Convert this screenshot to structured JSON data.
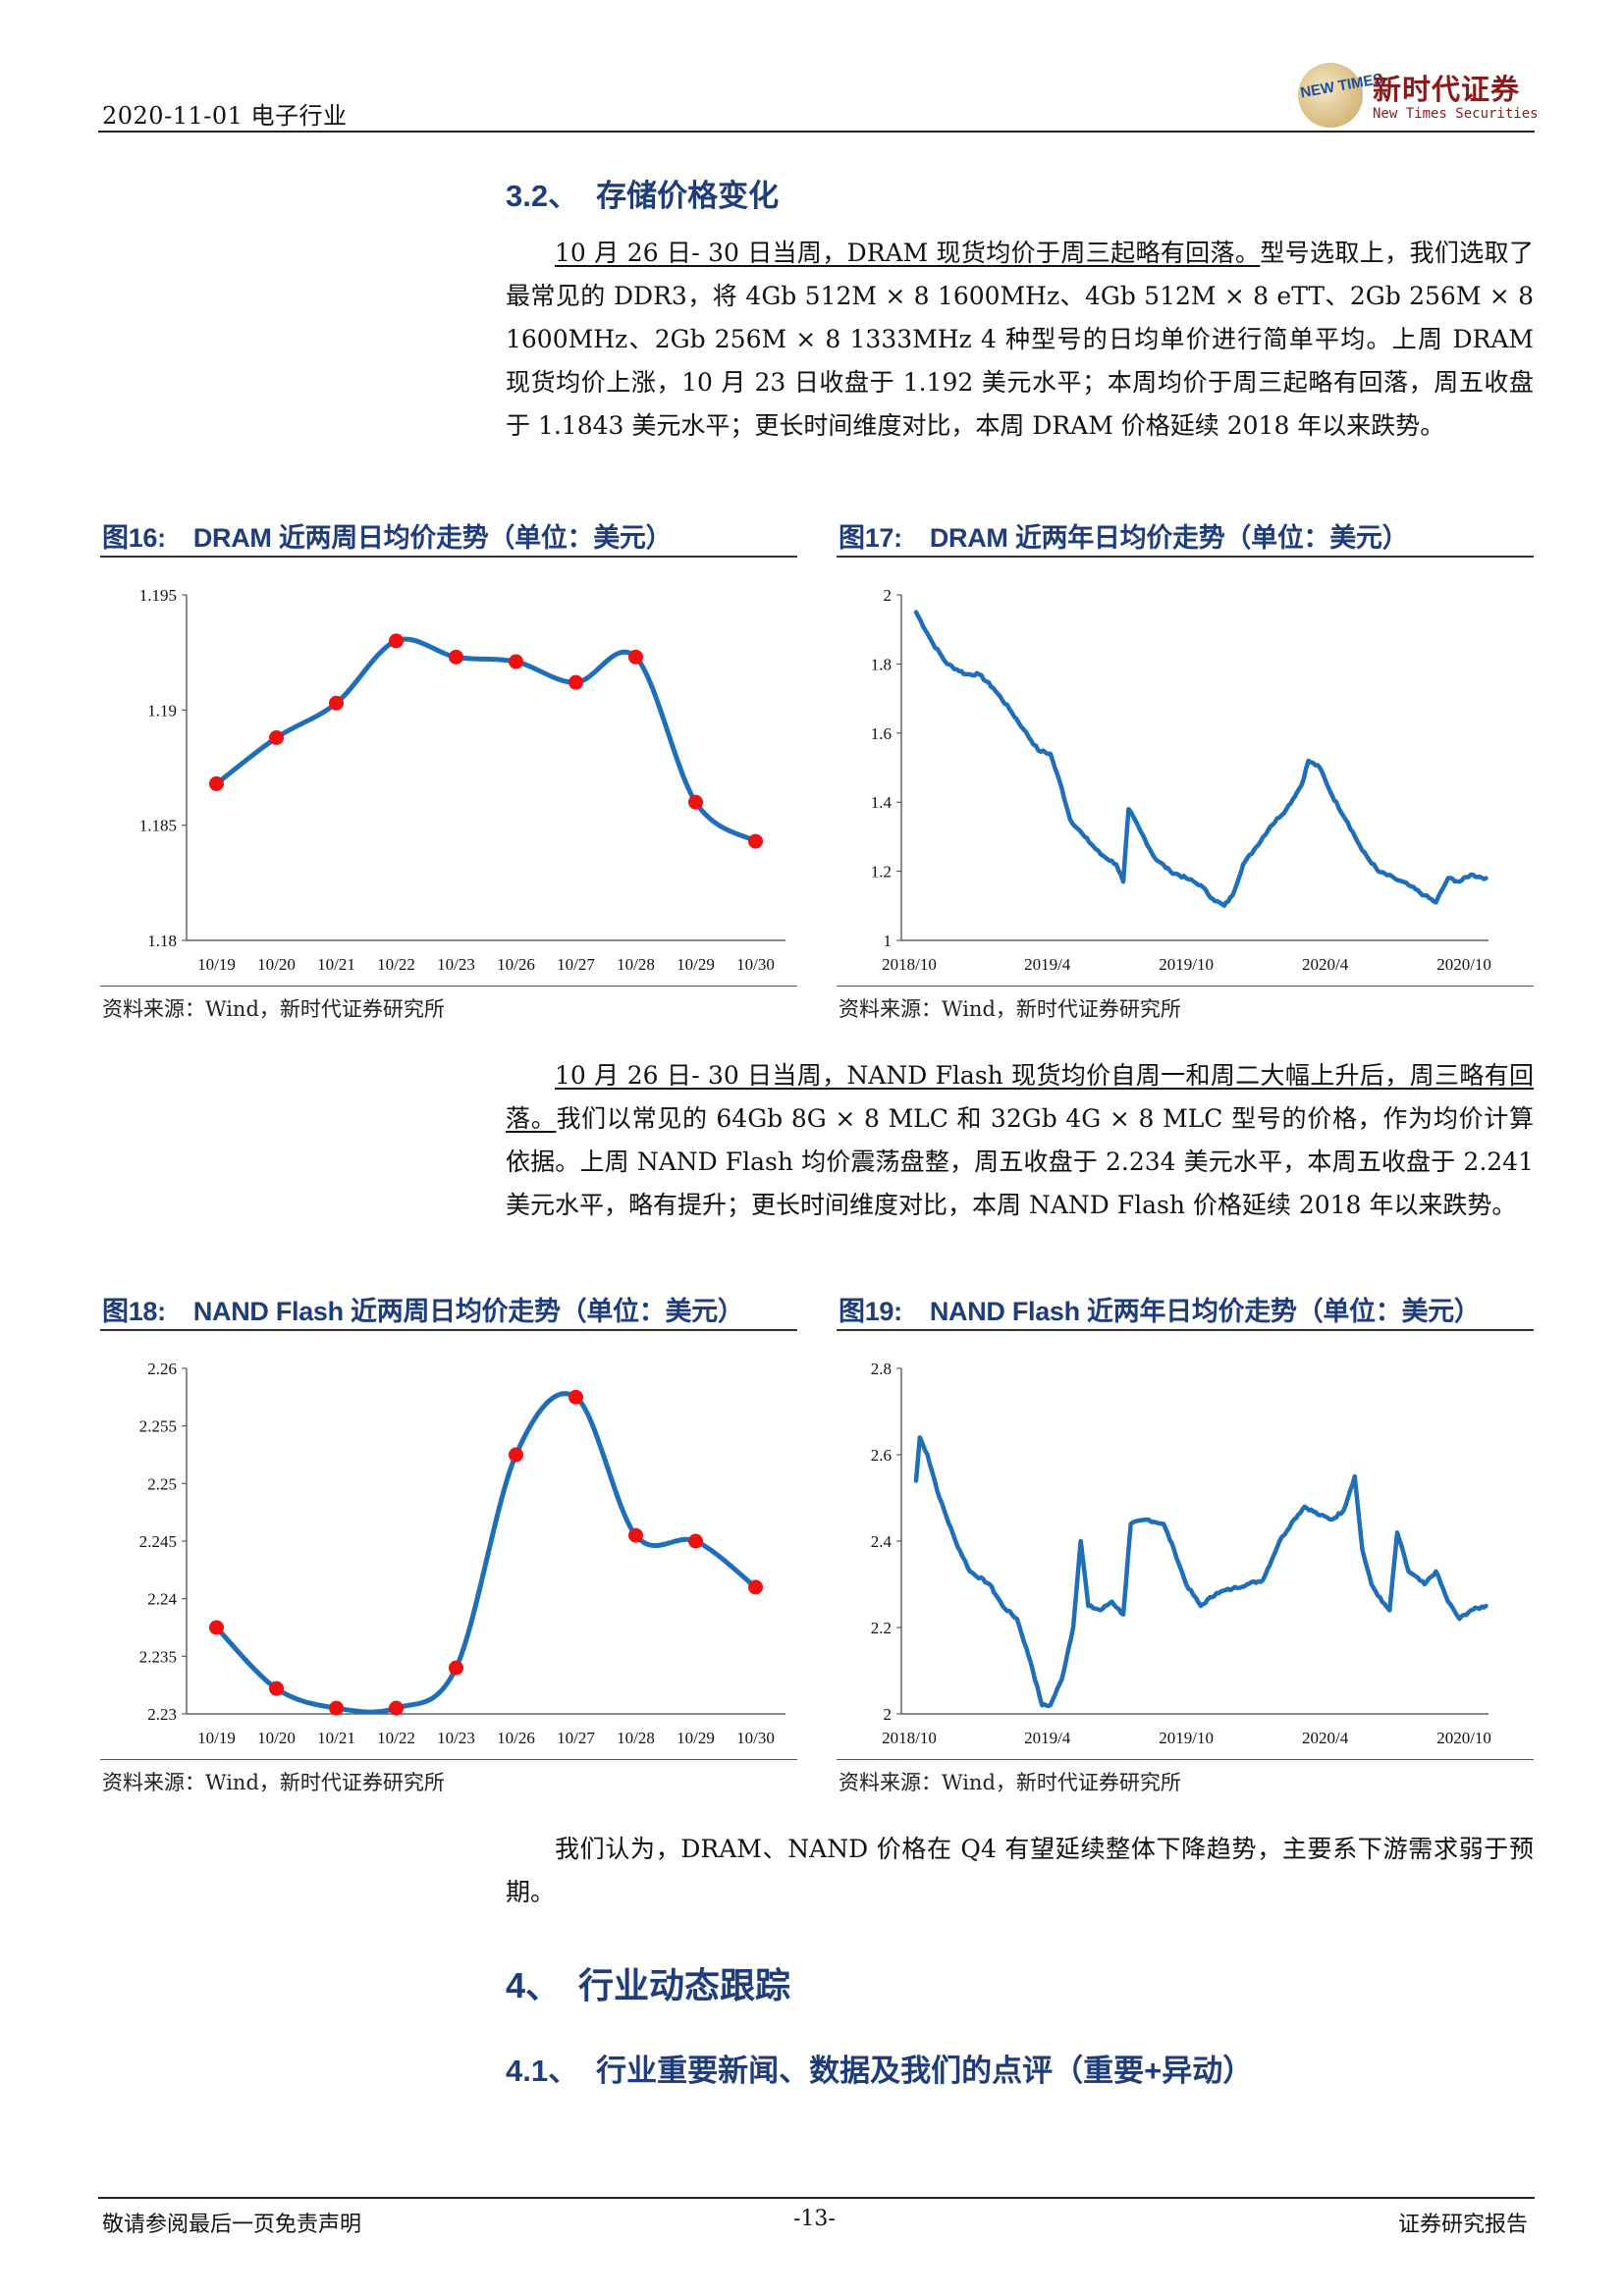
{
  "header": {
    "date_industry": "2020-11-01  电子行业",
    "logo_cn": "新时代证券",
    "logo_en": "New Times Securities",
    "logo_mark": "NEW TIMES"
  },
  "section_3_2": {
    "number": "3.2、",
    "title": "存储价格变化",
    "para1_underlined": "10 月 26 日- 30 日当周，DRAM 现货均价于周三起略有回落。",
    "para1_rest": "型号选取上，我们选取了最常见的 DDR3，将 4Gb 512M × 8 1600MHz、4Gb 512M × 8 eTT、2Gb 256M × 8 1600MHz、2Gb 256M × 8 1333MHz 4 种型号的日均单价进行简单平均。上周 DRAM 现货均价上涨，10 月 23 日收盘于 1.192 美元水平；本周均价于周三起略有回落，周五收盘于 1.1843 美元水平；更长时间维度对比，本周 DRAM 价格延续 2018 年以来跌势。",
    "para2_underlined": "10 月 26 日- 30 日当周，NAND Flash 现货均价自周一和周二大幅上升后，周三略有回落。",
    "para2_rest": "我们以常见的 64Gb 8G × 8 MLC 和 32Gb 4G × 8 MLC 型号的价格，作为均价计算依据。上周 NAND Flash 均价震荡盘整，周五收盘于 2.234 美元水平，本周五收盘于 2.241 美元水平，略有提升；更长时间维度对比，本周 NAND Flash 价格延续 2018 年以来跌势。",
    "para3": "我们认为，DRAM、NAND 价格在 Q4 有望延续整体下降趋势，主要系下游需求弱于预期。"
  },
  "figures": {
    "f16": {
      "num": "图16:",
      "title": "DRAM 近两周日均价走势（单位：美元）",
      "source": "资料来源：Wind，新时代证券研究所"
    },
    "f17": {
      "num": "图17:",
      "title": "DRAM 近两年日均价走势（单位：美元）",
      "source": "资料来源：Wind，新时代证券研究所"
    },
    "f18": {
      "num": "图18:",
      "title": "NAND Flash 近两周日均价走势（单位：美元）",
      "source": "资料来源：Wind，新时代证券研究所"
    },
    "f19": {
      "num": "图19:",
      "title": "NAND Flash 近两年日均价走势（单位：美元）",
      "source": "资料来源：Wind，新时代证券研究所"
    }
  },
  "section_4": {
    "number": "4、",
    "title": "行业动态跟踪"
  },
  "section_4_1": {
    "number": "4.1、",
    "title": "行业重要新闻、数据及我们的点评（重要+异动）"
  },
  "footer": {
    "left": "敬请参阅最后一页免责声明",
    "page": "-13-",
    "right": "证券研究报告"
  },
  "colors": {
    "line": "#1f6fb8",
    "marker": "#ee1111",
    "heading": "#1f3d7a"
  },
  "chart_data": [
    {
      "id": "f16",
      "type": "line",
      "categories": [
        "10/19",
        "10/20",
        "10/21",
        "10/22",
        "10/23",
        "10/26",
        "10/27",
        "10/28",
        "10/29",
        "10/30"
      ],
      "values": [
        1.1868,
        1.1888,
        1.1903,
        1.193,
        1.1923,
        1.1921,
        1.1912,
        1.1923,
        1.186,
        1.1843
      ],
      "ylim": [
        1.18,
        1.195
      ],
      "yticks": [
        "1.18",
        "1.185",
        "1.19",
        "1.195"
      ],
      "markers": true,
      "grid": false
    },
    {
      "id": "f17",
      "type": "line",
      "xticks": [
        "2018/10",
        "2019/4",
        "2019/10",
        "2020/4",
        "2020/10"
      ],
      "x_range": [
        "2018/10",
        "2020/10"
      ],
      "ylim": [
        1,
        2
      ],
      "yticks": [
        "1",
        "1.2",
        "1.4",
        "1.6",
        "1.8",
        "2"
      ],
      "keypoints": [
        [
          "2018-10-10",
          1.95
        ],
        [
          "2018-11-01",
          1.86
        ],
        [
          "2018-11-20",
          1.8
        ],
        [
          "2018-12-15",
          1.77
        ],
        [
          "2019-01-01",
          1.77
        ],
        [
          "2019-01-20",
          1.73
        ],
        [
          "2019-02-10",
          1.67
        ],
        [
          "2019-03-01",
          1.61
        ],
        [
          "2019-03-20",
          1.55
        ],
        [
          "2019-04-05",
          1.54
        ],
        [
          "2019-04-20",
          1.44
        ],
        [
          "2019-05-01",
          1.35
        ],
        [
          "2019-05-20",
          1.3
        ],
        [
          "2019-06-10",
          1.25
        ],
        [
          "2019-07-01",
          1.22
        ],
        [
          "2019-07-10",
          1.17
        ],
        [
          "2019-07-17",
          1.38
        ],
        [
          "2019-08-01",
          1.32
        ],
        [
          "2019-08-20",
          1.24
        ],
        [
          "2019-09-10",
          1.2
        ],
        [
          "2019-10-01",
          1.18
        ],
        [
          "2019-10-20",
          1.16
        ],
        [
          "2019-11-05",
          1.12
        ],
        [
          "2019-11-20",
          1.1
        ],
        [
          "2019-12-01",
          1.13
        ],
        [
          "2019-12-15",
          1.22
        ],
        [
          "2020-01-01",
          1.27
        ],
        [
          "2020-01-20",
          1.33
        ],
        [
          "2020-02-10",
          1.38
        ],
        [
          "2020-03-01",
          1.45
        ],
        [
          "2020-03-10",
          1.52
        ],
        [
          "2020-03-25",
          1.5
        ],
        [
          "2020-04-10",
          1.42
        ],
        [
          "2020-05-01",
          1.34
        ],
        [
          "2020-05-20",
          1.26
        ],
        [
          "2020-06-10",
          1.2
        ],
        [
          "2020-07-01",
          1.18
        ],
        [
          "2020-07-20",
          1.16
        ],
        [
          "2020-08-10",
          1.13
        ],
        [
          "2020-08-25",
          1.11
        ],
        [
          "2020-09-10",
          1.18
        ],
        [
          "2020-09-25",
          1.17
        ],
        [
          "2020-10-10",
          1.19
        ],
        [
          "2020-10-30",
          1.18
        ]
      ]
    },
    {
      "id": "f18",
      "type": "line",
      "categories": [
        "10/19",
        "10/20",
        "10/21",
        "10/22",
        "10/23",
        "10/26",
        "10/27",
        "10/28",
        "10/29",
        "10/30"
      ],
      "values": [
        2.2375,
        2.2322,
        2.2305,
        2.2305,
        2.234,
        2.2525,
        2.2575,
        2.2455,
        2.245,
        2.241
      ],
      "ylim": [
        2.23,
        2.26
      ],
      "yticks": [
        "2.23",
        "2.235",
        "2.24",
        "2.245",
        "2.25",
        "2.255",
        "2.26"
      ],
      "markers": true,
      "grid": false
    },
    {
      "id": "f19",
      "type": "line",
      "xticks": [
        "2018/10",
        "2019/4",
        "2019/10",
        "2020/4",
        "2020/10"
      ],
      "x_range": [
        "2018/10",
        "2020/10"
      ],
      "ylim": [
        2,
        2.8
      ],
      "yticks": [
        "2",
        "2.2",
        "2.4",
        "2.6",
        "2.8"
      ],
      "keypoints": [
        [
          "2018-10-10",
          2.54
        ],
        [
          "2018-10-15",
          2.64
        ],
        [
          "2018-10-25",
          2.6
        ],
        [
          "2018-11-10",
          2.5
        ],
        [
          "2018-12-01",
          2.4
        ],
        [
          "2018-12-20",
          2.33
        ],
        [
          "2019-01-15",
          2.3
        ],
        [
          "2019-02-01",
          2.25
        ],
        [
          "2019-02-20",
          2.22
        ],
        [
          "2019-03-10",
          2.12
        ],
        [
          "2019-03-25",
          2.02
        ],
        [
          "2019-04-05",
          2.02
        ],
        [
          "2019-04-20",
          2.08
        ],
        [
          "2019-05-05",
          2.2
        ],
        [
          "2019-05-15",
          2.4
        ],
        [
          "2019-05-25",
          2.25
        ],
        [
          "2019-06-10",
          2.24
        ],
        [
          "2019-06-25",
          2.26
        ],
        [
          "2019-07-10",
          2.23
        ],
        [
          "2019-07-20",
          2.44
        ],
        [
          "2019-08-10",
          2.45
        ],
        [
          "2019-09-01",
          2.44
        ],
        [
          "2019-09-15",
          2.38
        ],
        [
          "2019-10-01",
          2.3
        ],
        [
          "2019-10-20",
          2.25
        ],
        [
          "2019-11-10",
          2.28
        ],
        [
          "2019-12-01",
          2.29
        ],
        [
          "2019-12-20",
          2.3
        ],
        [
          "2020-01-10",
          2.31
        ],
        [
          "2020-02-01",
          2.4
        ],
        [
          "2020-02-20",
          2.45
        ],
        [
          "2020-03-05",
          2.48
        ],
        [
          "2020-03-25",
          2.46
        ],
        [
          "2020-04-10",
          2.45
        ],
        [
          "2020-04-25",
          2.47
        ],
        [
          "2020-05-10",
          2.55
        ],
        [
          "2020-05-20",
          2.38
        ],
        [
          "2020-06-01",
          2.3
        ],
        [
          "2020-06-15",
          2.26
        ],
        [
          "2020-06-25",
          2.24
        ],
        [
          "2020-07-05",
          2.42
        ],
        [
          "2020-07-20",
          2.33
        ],
        [
          "2020-08-10",
          2.3
        ],
        [
          "2020-08-25",
          2.33
        ],
        [
          "2020-09-10",
          2.26
        ],
        [
          "2020-09-25",
          2.22
        ],
        [
          "2020-10-10",
          2.24
        ],
        [
          "2020-10-30",
          2.25
        ]
      ]
    }
  ]
}
